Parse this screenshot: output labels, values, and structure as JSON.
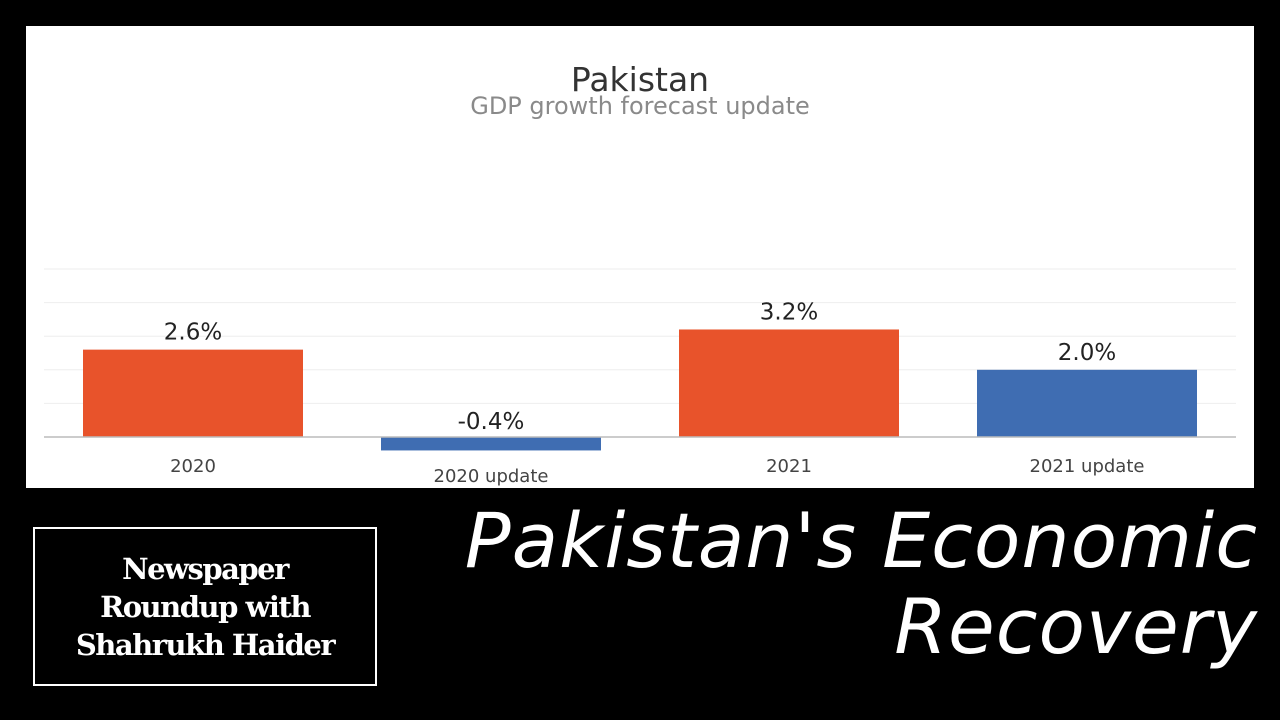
{
  "colors": {
    "orange": "#e8532b",
    "blue": "#3f6db2",
    "axis": "#bcbcbc",
    "grid": "#eeeeee"
  },
  "chart_data": {
    "type": "bar",
    "title": "Pakistan",
    "subtitle": "GDP growth forecast update",
    "categories": [
      "2020",
      "2020 update",
      "2021",
      "2021 update"
    ],
    "values": [
      2.6,
      -0.4,
      3.2,
      2.0
    ],
    "value_labels": [
      "2.6%",
      "-0.4%",
      "3.2%",
      "2.0%"
    ],
    "bar_colors": [
      "#e8532b",
      "#3f6db2",
      "#e8532b",
      "#3f6db2"
    ],
    "grid": true,
    "ylim": [
      -0.6,
      5.4
    ]
  },
  "badge": {
    "line1": "Newspaper",
    "line2": "Roundup with",
    "line3": "Shahrukh Haider"
  },
  "headline": {
    "line1": "Pakistan's Economic",
    "line2": "Recovery"
  }
}
